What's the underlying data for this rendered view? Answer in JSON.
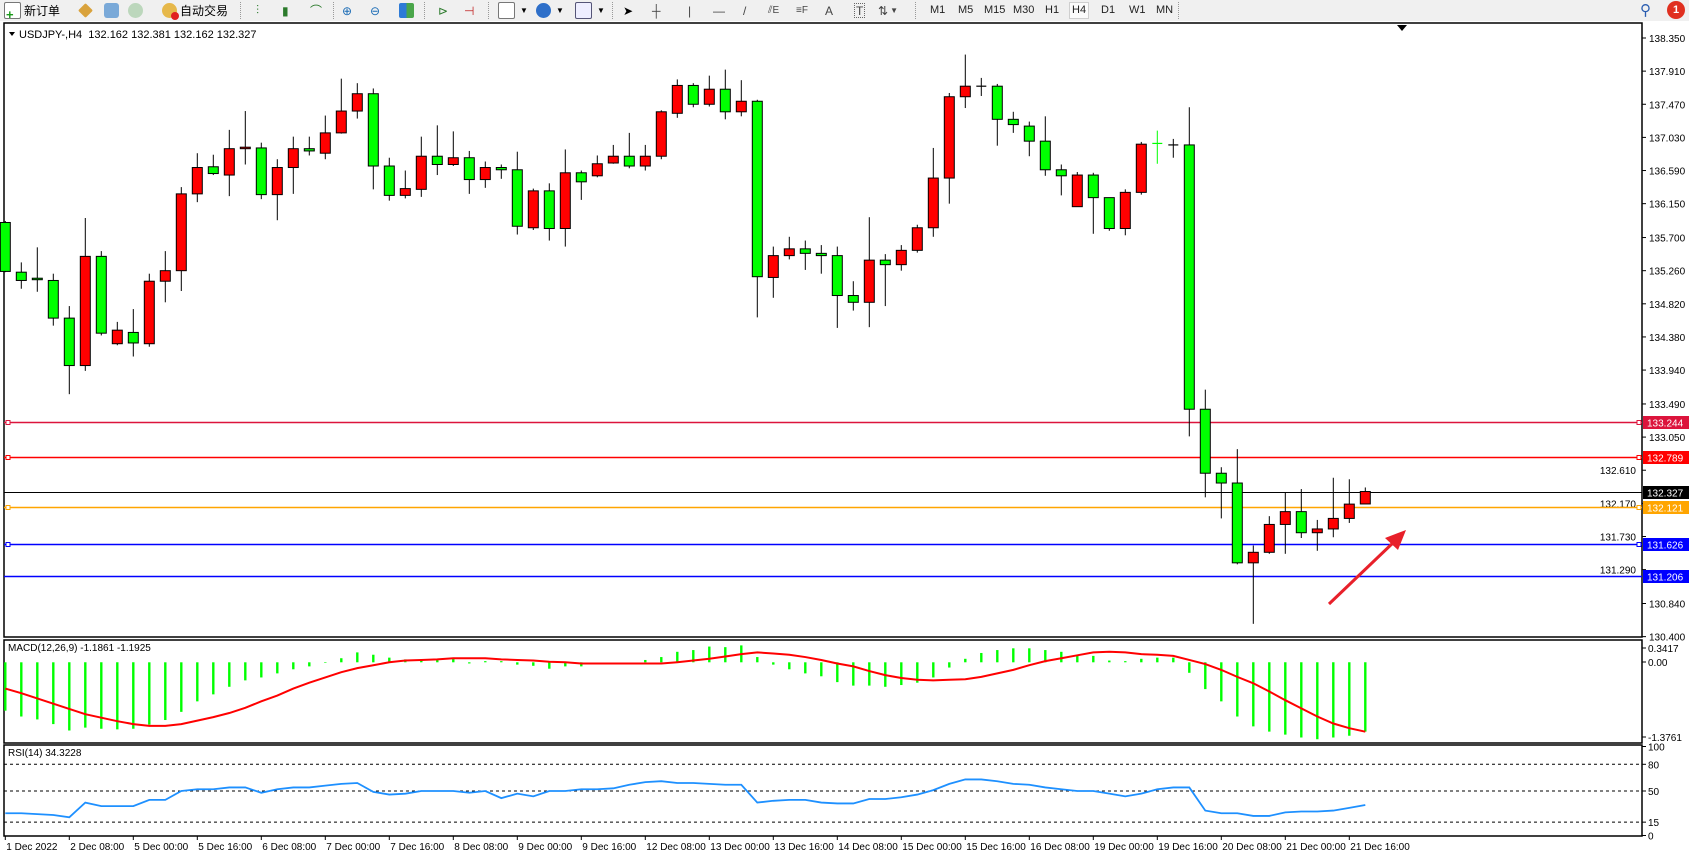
{
  "toolbar": {
    "new_order_label": "新订单",
    "auto_trading_label": "自动交易",
    "timeframes": [
      "M1",
      "M5",
      "M15",
      "M30",
      "H1",
      "H4",
      "D1",
      "W1",
      "MN"
    ],
    "active_timeframe": "H4",
    "notification_count": "1",
    "icons": [
      "new-order-icon",
      "market-watch-icon",
      "data-window-icon",
      "signals-icon",
      "auto-trading-icon",
      "bar-chart-icon",
      "candlestick-icon",
      "line-chart-icon",
      "zoom-in-icon",
      "zoom-out-icon",
      "tile-windows-icon",
      "autoscroll-icon",
      "chart-shift-icon",
      "indicators-icon",
      "periods-icon",
      "templates-icon",
      "cursor-icon",
      "crosshair-icon",
      "vertical-line-icon",
      "horizontal-line-icon",
      "trendline-icon",
      "equidistant-channel-icon",
      "fibonacci-icon",
      "text-icon",
      "text-label-icon",
      "arrows-icon",
      "search-icon",
      "notification-icon"
    ]
  },
  "chart_data": [
    {
      "type": "candlestick",
      "title": "USDJPY-,H4  132.162 132.381 132.162 132.327",
      "colors": {
        "bull": "#ff0000",
        "bear": "#00ff00",
        "background": "#ffffff"
      },
      "ohlc_order": [
        "open",
        "high",
        "low",
        "close"
      ],
      "ohlc": [
        [
          135.9,
          135.92,
          135.24,
          135.25
        ],
        [
          135.24,
          135.37,
          135.02,
          135.13
        ],
        [
          135.16,
          135.57,
          134.98,
          135.14
        ],
        [
          135.13,
          135.22,
          134.53,
          134.63
        ],
        [
          134.63,
          134.79,
          133.62,
          134.0
        ],
        [
          134.0,
          135.96,
          133.93,
          135.45
        ],
        [
          135.45,
          135.52,
          134.4,
          134.43
        ],
        [
          134.29,
          134.58,
          134.27,
          134.47
        ],
        [
          134.44,
          134.75,
          134.12,
          134.3
        ],
        [
          134.29,
          135.22,
          134.25,
          135.12
        ],
        [
          135.12,
          135.52,
          134.84,
          135.26
        ],
        [
          135.26,
          136.37,
          134.99,
          136.28
        ],
        [
          136.28,
          136.82,
          136.17,
          136.63
        ],
        [
          136.64,
          136.8,
          136.53,
          136.55
        ],
        [
          136.53,
          137.13,
          136.25,
          136.88
        ],
        [
          136.88,
          137.38,
          136.67,
          136.9
        ],
        [
          136.89,
          136.96,
          136.21,
          136.27
        ],
        [
          136.27,
          136.74,
          135.93,
          136.63
        ],
        [
          136.63,
          137.04,
          136.28,
          136.88
        ],
        [
          136.88,
          137.04,
          136.79,
          136.85
        ],
        [
          136.82,
          137.32,
          136.74,
          137.09
        ],
        [
          137.09,
          137.81,
          137.08,
          137.38
        ],
        [
          137.38,
          137.75,
          137.28,
          137.61
        ],
        [
          137.61,
          137.68,
          136.34,
          136.65
        ],
        [
          136.65,
          136.76,
          136.19,
          136.26
        ],
        [
          136.26,
          136.59,
          136.22,
          136.35
        ],
        [
          136.34,
          137.04,
          136.24,
          136.78
        ],
        [
          136.78,
          137.19,
          136.53,
          136.67
        ],
        [
          136.67,
          137.11,
          136.65,
          136.76
        ],
        [
          136.76,
          136.85,
          136.28,
          136.47
        ],
        [
          136.47,
          136.71,
          136.36,
          136.63
        ],
        [
          136.63,
          136.67,
          136.48,
          136.6
        ],
        [
          136.6,
          136.84,
          135.74,
          135.85
        ],
        [
          135.83,
          136.35,
          135.8,
          136.32
        ],
        [
          136.32,
          136.42,
          135.66,
          135.82
        ],
        [
          135.82,
          136.87,
          135.58,
          136.56
        ],
        [
          136.56,
          136.59,
          136.2,
          136.44
        ],
        [
          136.52,
          136.79,
          136.5,
          136.68
        ],
        [
          136.69,
          136.93,
          136.68,
          136.78
        ],
        [
          136.78,
          137.09,
          136.62,
          136.65
        ],
        [
          136.65,
          136.93,
          136.59,
          136.78
        ],
        [
          136.78,
          137.39,
          136.74,
          137.37
        ],
        [
          137.35,
          137.8,
          137.29,
          137.72
        ],
        [
          137.72,
          137.75,
          137.43,
          137.47
        ],
        [
          137.47,
          137.85,
          137.44,
          137.67
        ],
        [
          137.67,
          137.93,
          137.27,
          137.37
        ],
        [
          137.37,
          137.79,
          137.31,
          137.51
        ],
        [
          137.51,
          137.53,
          134.64,
          135.18
        ],
        [
          135.17,
          135.58,
          134.9,
          135.46
        ],
        [
          135.46,
          135.71,
          135.41,
          135.55
        ],
        [
          135.55,
          135.66,
          135.27,
          135.49
        ],
        [
          135.49,
          135.6,
          135.22,
          135.46
        ],
        [
          135.46,
          135.58,
          134.5,
          134.93
        ],
        [
          134.93,
          135.12,
          134.73,
          134.84
        ],
        [
          134.84,
          135.97,
          134.51,
          135.4
        ],
        [
          135.4,
          135.48,
          134.79,
          135.34
        ],
        [
          135.34,
          135.6,
          135.26,
          135.53
        ],
        [
          135.53,
          135.87,
          135.5,
          135.83
        ],
        [
          135.83,
          136.89,
          135.71,
          136.49
        ],
        [
          136.49,
          137.62,
          136.15,
          137.57
        ],
        [
          137.57,
          138.13,
          137.42,
          137.71
        ],
        [
          137.71,
          137.82,
          137.58,
          137.71
        ],
        [
          137.71,
          137.74,
          136.92,
          137.27
        ],
        [
          137.27,
          137.37,
          137.09,
          137.2
        ],
        [
          137.18,
          137.24,
          136.78,
          136.98
        ],
        [
          136.98,
          137.31,
          136.52,
          136.6
        ],
        [
          136.6,
          136.67,
          136.26,
          136.52
        ],
        [
          136.11,
          136.57,
          136.11,
          136.53
        ],
        [
          136.53,
          136.56,
          135.75,
          136.23
        ],
        [
          136.23,
          136.23,
          135.79,
          135.82
        ],
        [
          135.82,
          136.34,
          135.73,
          136.3
        ],
        [
          136.3,
          136.97,
          136.27,
          136.94
        ],
        [
          136.95,
          137.12,
          136.68,
          136.94
        ],
        [
          136.93,
          137.01,
          136.76,
          136.93
        ],
        [
          136.93,
          137.43,
          133.06,
          133.42
        ],
        [
          133.42,
          133.68,
          132.25,
          132.57
        ],
        [
          132.57,
          132.65,
          131.97,
          132.44
        ],
        [
          132.44,
          132.89,
          131.36,
          131.38
        ],
        [
          131.38,
          131.61,
          130.57,
          131.52
        ],
        [
          131.52,
          132.0,
          131.5,
          131.89
        ],
        [
          131.89,
          132.32,
          131.5,
          132.06
        ],
        [
          132.06,
          132.36,
          131.71,
          131.78
        ],
        [
          131.78,
          131.95,
          131.54,
          131.83
        ],
        [
          131.83,
          132.51,
          131.72,
          131.97
        ],
        [
          131.97,
          132.49,
          131.91,
          132.16
        ],
        [
          132.162,
          132.381,
          132.162,
          132.327
        ]
      ],
      "ylim": [
        130.4,
        138.35
      ],
      "y_tick_labels": [
        "138.350",
        "137.910",
        "137.470",
        "137.030",
        "136.590",
        "136.150",
        "135.700",
        "135.260",
        "134.820",
        "134.380",
        "133.940",
        "133.490",
        "133.050",
        "132.610",
        "132.170",
        "131.730",
        "131.290",
        "130.840",
        "130.400"
      ],
      "x_tick_labels": [
        "1 Dec 2022",
        "2 Dec 08:00",
        "5 Dec 00:00",
        "5 Dec 16:00",
        "6 Dec 08:00",
        "7 Dec 00:00",
        "7 Dec 16:00",
        "8 Dec 08:00",
        "9 Dec 00:00",
        "9 Dec 16:00",
        "12 Dec 08:00",
        "13 Dec 00:00",
        "13 Dec 16:00",
        "14 Dec 08:00",
        "15 Dec 00:00",
        "15 Dec 16:00",
        "16 Dec 08:00",
        "19 Dec 00:00",
        "19 Dec 16:00",
        "20 Dec 08:00",
        "21 Dec 00:00",
        "21 Dec 16:00"
      ],
      "bars_per_x_label": 4,
      "horizontal_lines": [
        {
          "price": 133.244,
          "label": "133.244",
          "color": "#dc143c",
          "handles": true
        },
        {
          "price": 132.789,
          "label": "132.789",
          "color": "#ff0000",
          "handles": true
        },
        {
          "price": 132.327,
          "label": "132.327",
          "color": "#000000",
          "handles": false,
          "kind": "bid"
        },
        {
          "price": 132.121,
          "label": "132.121",
          "color": "#ffa500",
          "handles": true
        },
        {
          "price": 131.626,
          "label": "131.626",
          "color": "#0000ff",
          "handles": true
        },
        {
          "price": 131.206,
          "label": "131.206",
          "color": "#0000ff",
          "handles": false
        }
      ],
      "annotation_arrow": {
        "color": "#e8202a",
        "direction": "up-right"
      }
    },
    {
      "type": "bar+line",
      "title": "MACD(12,26,9) -1.1861 -1.1925",
      "y_tick_labels": [
        "0.3417",
        "0.00",
        "-1.3761"
      ],
      "colors": {
        "histogram": "#00ff00",
        "signal": "#ff0000"
      },
      "histogram": [
        -0.83,
        -0.93,
        -0.98,
        -1.06,
        -1.17,
        -1.12,
        -1.14,
        -1.15,
        -1.14,
        -1.07,
        -0.99,
        -0.85,
        -0.67,
        -0.55,
        -0.42,
        -0.31,
        -0.26,
        -0.19,
        -0.12,
        -0.07,
        -0.01,
        0.07,
        0.17,
        0.13,
        0.08,
        0.05,
        0.04,
        0.04,
        0.07,
        -0.02,
        0.02,
        0.02,
        -0.04,
        -0.06,
        -0.11,
        -0.07,
        -0.07,
        0,
        0,
        0,
        0.04,
        0.09,
        0.18,
        0.21,
        0.27,
        0.26,
        0.29,
        0.09,
        -0.04,
        -0.12,
        -0.19,
        -0.24,
        -0.34,
        -0.4,
        -0.4,
        -0.42,
        -0.39,
        -0.35,
        -0.26,
        -0.09,
        0.06,
        0.16,
        0.21,
        0.24,
        0.24,
        0.21,
        0.18,
        0.12,
        0.11,
        0.03,
        0.02,
        0.06,
        0.08,
        0.08,
        -0.18,
        -0.46,
        -0.67,
        -0.93,
        -1.1,
        -1.19,
        -1.24,
        -1.29,
        -1.32,
        -1.29,
        -1.26,
        -1.19
      ],
      "signal": [
        -0.45,
        -0.53,
        -0.62,
        -0.71,
        -0.8,
        -0.89,
        -0.95,
        -1.01,
        -1.06,
        -1.09,
        -1.09,
        -1.06,
        -1.0,
        -0.94,
        -0.87,
        -0.78,
        -0.67,
        -0.57,
        -0.45,
        -0.35,
        -0.26,
        -0.17,
        -0.1,
        -0.05,
        0,
        0.03,
        0.04,
        0.05,
        0.07,
        0.07,
        0.07,
        0.05,
        0.04,
        0.03,
        0.01,
        0,
        -0.02,
        -0.02,
        -0.02,
        -0.02,
        -0.02,
        -0.02,
        0,
        0.03,
        0.06,
        0.1,
        0.14,
        0.17,
        0.15,
        0.13,
        0.09,
        0.04,
        -0.02,
        -0.07,
        -0.15,
        -0.22,
        -0.27,
        -0.3,
        -0.31,
        -0.3,
        -0.29,
        -0.25,
        -0.19,
        -0.13,
        -0.05,
        0.02,
        0.07,
        0.12,
        0.17,
        0.18,
        0.17,
        0.14,
        0.13,
        0.11,
        0.04,
        -0.03,
        -0.13,
        -0.25,
        -0.36,
        -0.5,
        -0.65,
        -0.79,
        -0.93,
        -1.05,
        -1.13,
        -1.19
      ]
    },
    {
      "type": "line",
      "title": "RSI(14) 34.3228",
      "ylim": [
        0,
        100
      ],
      "y_tick_labels": [
        "100",
        "80",
        "50",
        "15",
        "0"
      ],
      "levels": [
        80,
        50,
        15
      ],
      "color": "#1e90ff",
      "values": [
        25,
        25,
        24,
        23,
        20.5,
        37,
        33,
        33,
        33,
        40,
        40,
        50,
        52,
        52,
        54,
        54,
        48,
        52,
        54,
        54,
        56,
        58,
        59,
        49,
        46,
        47,
        50,
        50,
        50,
        48,
        50,
        42,
        47,
        44,
        50,
        50,
        52,
        52,
        53,
        57,
        60,
        61,
        59,
        59,
        58,
        57,
        57,
        37,
        39,
        40,
        40,
        37,
        36,
        36,
        41,
        41,
        43,
        46,
        51,
        58,
        63,
        63,
        61,
        58,
        57,
        54,
        52,
        50,
        50,
        47,
        44,
        47,
        52,
        54,
        54,
        28,
        25,
        25,
        22,
        22,
        26,
        27,
        27,
        28,
        31,
        34.32
      ]
    }
  ]
}
